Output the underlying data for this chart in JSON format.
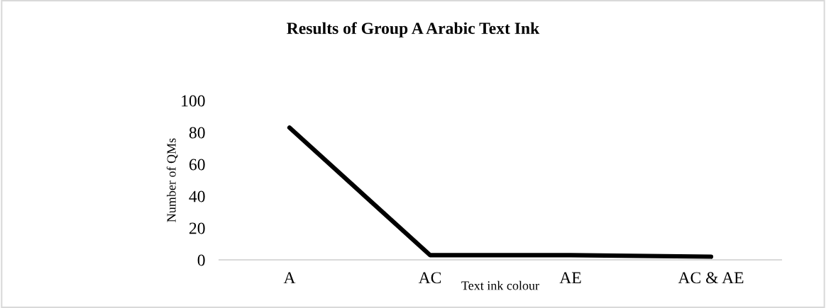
{
  "chart_data": {
    "type": "line",
    "title": "Results of Group A Arabic Text Ink",
    "xlabel": "Text ink colour",
    "ylabel": "Number of QMs",
    "categories": [
      "A",
      "AC",
      "AE",
      "AC & AE"
    ],
    "series": [
      {
        "color": "#000000",
        "values": [
          83,
          3,
          3,
          2
        ]
      }
    ],
    "ylim": [
      0,
      100
    ],
    "yticks": [
      0,
      20,
      40,
      60,
      80,
      100
    ],
    "grid": false,
    "marker": "none",
    "line_style": "solid"
  }
}
